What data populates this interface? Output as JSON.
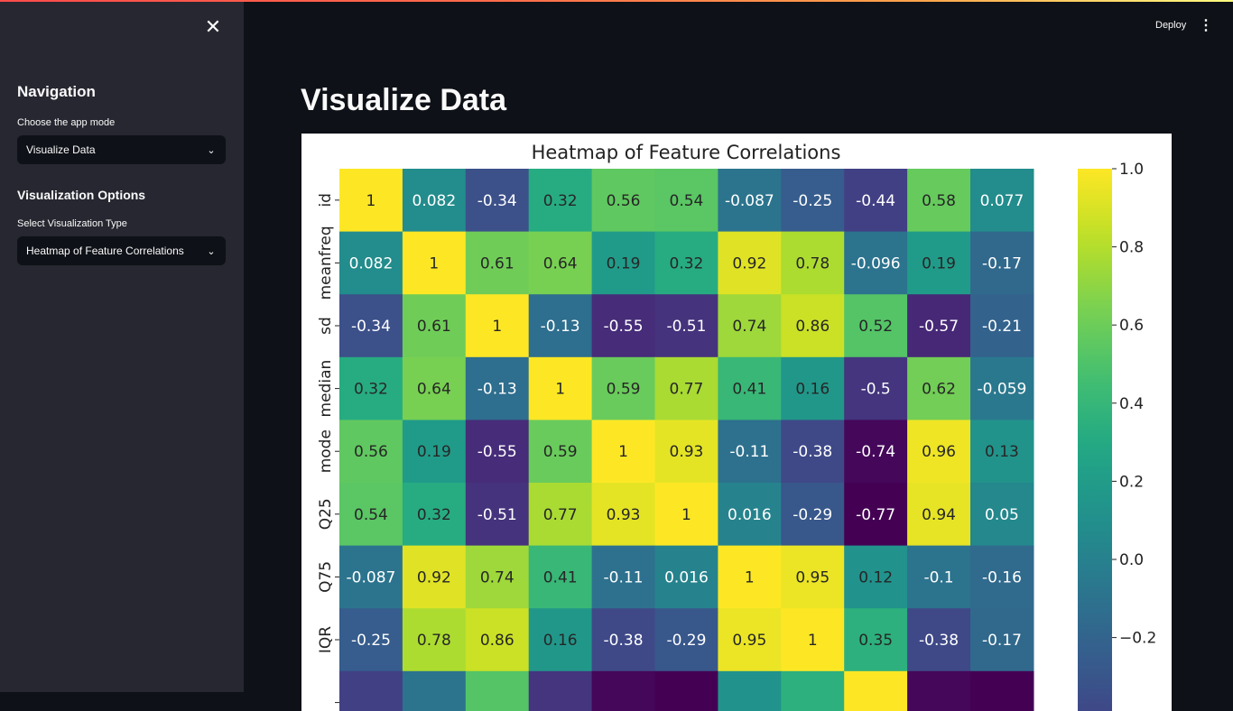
{
  "app": {
    "deploy_label": "Deploy",
    "page_title": "Visualize Data"
  },
  "sidebar": {
    "navigation_heading": "Navigation",
    "mode_label": "Choose the app mode",
    "mode_value": "Visualize Data",
    "viz_heading": "Visualization Options",
    "viz_label": "Select Visualization Type",
    "viz_value": "Heatmap of Feature Correlations"
  },
  "icons": {
    "close": "close-icon",
    "chevron": "chevron-down-icon",
    "menu": "vertical-dots-icon"
  },
  "chart_data": {
    "type": "heatmap",
    "title": "Heatmap of Feature Correlations",
    "colormap": "viridis",
    "vmin": -0.77,
    "vmax": 1.0,
    "row_labels": [
      "id",
      "meanfreq",
      "sd",
      "median",
      "mode",
      "Q25",
      "Q75",
      "IQR"
    ],
    "values": [
      [
        1,
        0.082,
        -0.34,
        0.32,
        0.56,
        0.54,
        -0.087,
        -0.25,
        -0.44,
        0.58,
        0.077
      ],
      [
        0.082,
        1,
        0.61,
        0.64,
        0.19,
        0.32,
        0.92,
        0.78,
        -0.096,
        0.19,
        -0.17
      ],
      [
        -0.34,
        0.61,
        1,
        -0.13,
        -0.55,
        -0.51,
        0.74,
        0.86,
        0.52,
        -0.57,
        -0.21
      ],
      [
        0.32,
        0.64,
        -0.13,
        1,
        0.59,
        0.77,
        0.41,
        0.16,
        -0.5,
        0.62,
        -0.059
      ],
      [
        0.56,
        0.19,
        -0.55,
        0.59,
        1,
        0.93,
        -0.11,
        -0.38,
        -0.74,
        0.96,
        0.13
      ],
      [
        0.54,
        0.32,
        -0.51,
        0.77,
        0.93,
        1,
        0.016,
        -0.29,
        -0.77,
        0.94,
        0.05
      ],
      [
        -0.087,
        0.92,
        0.74,
        0.41,
        -0.11,
        0.016,
        1,
        0.95,
        0.12,
        -0.1,
        -0.16
      ],
      [
        -0.25,
        0.78,
        0.86,
        0.16,
        -0.38,
        -0.29,
        0.95,
        1,
        0.35,
        -0.38,
        -0.17
      ]
    ],
    "partial_row_values": [
      -0.44,
      -0.096,
      0.52,
      -0.5,
      -0.74,
      -0.77,
      0.12,
      0.35,
      1,
      -0.74,
      -0.79
    ],
    "colorbar_ticks": [
      "1.0",
      "0.8",
      "0.6",
      "0.4",
      "0.2",
      "0.0",
      "−0.2"
    ],
    "colorbar_tick_values": [
      1.0,
      0.8,
      0.6,
      0.4,
      0.2,
      0.0,
      -0.2
    ]
  }
}
